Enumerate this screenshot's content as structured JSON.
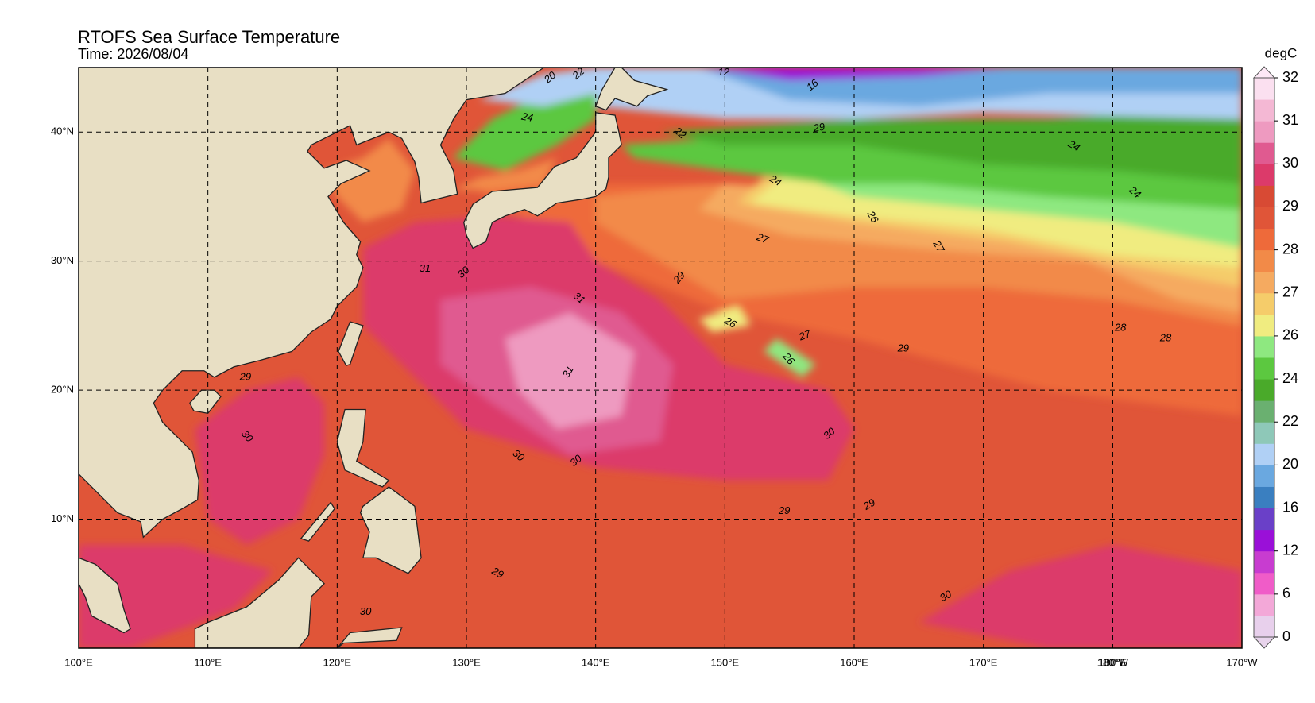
{
  "map": {
    "title": "RTOFS Sea Surface Temperature",
    "subtitle": "Time: 2026/08/04",
    "lon_range": [
      100,
      190
    ],
    "lat_range": [
      0,
      45
    ],
    "lon_ticks": [
      {
        "value": 100,
        "label": "100°E"
      },
      {
        "value": 110,
        "label": "110°E"
      },
      {
        "value": 120,
        "label": "120°E"
      },
      {
        "value": 130,
        "label": "130°E"
      },
      {
        "value": 140,
        "label": "140°E"
      },
      {
        "value": 150,
        "label": "150°E"
      },
      {
        "value": 160,
        "label": "160°E"
      },
      {
        "value": 170,
        "label": "170°E"
      },
      {
        "value": 180,
        "label": "180°E"
      },
      {
        "value": 180,
        "label": "180°W"
      },
      {
        "value": 190,
        "label": "170°W"
      }
    ],
    "lat_ticks": [
      {
        "value": 10,
        "label": "10°N"
      },
      {
        "value": 20,
        "label": "20°N"
      },
      {
        "value": 30,
        "label": "30°N"
      },
      {
        "value": 40,
        "label": "40°N"
      }
    ],
    "grid": true,
    "colorbar": {
      "label": "degC",
      "ticks": [
        0,
        6,
        12,
        16,
        20,
        22,
        24,
        26,
        27,
        28,
        29,
        30,
        31,
        32
      ],
      "colors": [
        "#e8d0ec",
        "#f3a8d8",
        "#f05cc8",
        "#c83cd0",
        "#9a10d8",
        "#6a40c8",
        "#3a7fc0",
        "#6aa8e0",
        "#b0d0f5",
        "#8ec8b8",
        "#6ab070",
        "#4aaa2a",
        "#5cc840",
        "#8ee880",
        "#f0ec80",
        "#f5cc6a",
        "#f5aa60",
        "#f28a48",
        "#ee6a3a",
        "#e05538",
        "#d84a34",
        "#dc3a6a",
        "#e05a90",
        "#ee9ac0",
        "#f4b8d4",
        "#fbe0f0"
      ],
      "under_color": "#e8d4ec",
      "over_color": "#fde8f6"
    },
    "land_color": "#e8dfc4",
    "contour_labels": [
      "31",
      "30",
      "31",
      "31",
      "29",
      "27",
      "26",
      "27",
      "26",
      "27",
      "26",
      "24",
      "29",
      "16",
      "12",
      "22",
      "24",
      "22",
      "20",
      "28",
      "28",
      "29",
      "30",
      "29",
      "29",
      "30",
      "30",
      "30",
      "29",
      "30",
      "30",
      "29",
      "24",
      "24"
    ]
  }
}
